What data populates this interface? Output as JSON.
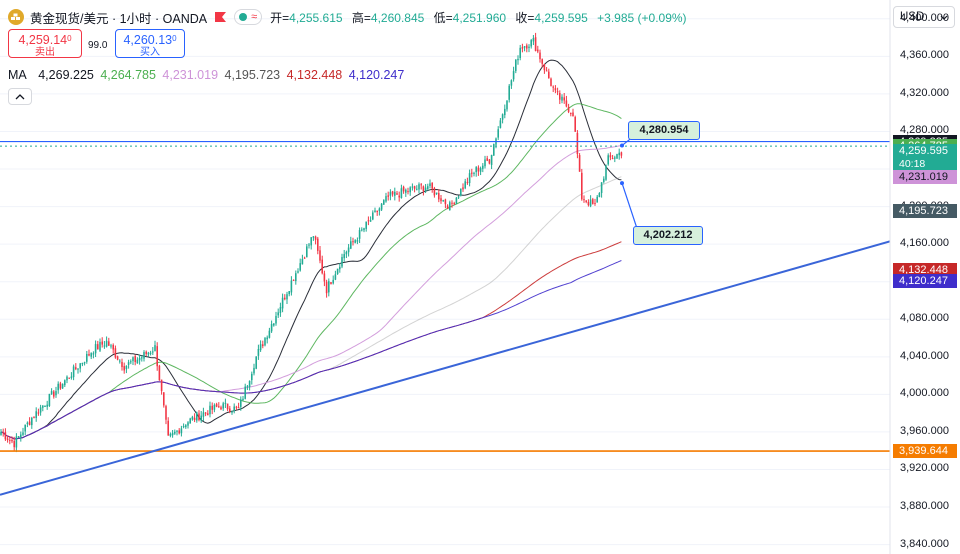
{
  "header": {
    "symbol_title": "黄金现货/美元 · 1小时 · OANDA",
    "open_label": "开=",
    "open_value": "4,255.615",
    "high_label": "高=",
    "high_value": "4,260.845",
    "low_label": "低=",
    "low_value": "4,251.960",
    "close_label": "收=",
    "close_value": "4,259.595",
    "change": "+3.985 (+0.09%)",
    "icons": [
      "gold-coin-icon",
      "flag-icon",
      "status-dot-icon",
      "wave-icon"
    ]
  },
  "trade": {
    "sell_price": "4,259.14",
    "sell_price_sup": "0",
    "sell_label": "卖出",
    "spread": "99.0",
    "buy_price": "4,260.13",
    "buy_price_sup": "0",
    "buy_label": "买入"
  },
  "ma_legend": {
    "label": "MA",
    "values": [
      "4,269.225",
      "4,264.785",
      "4,231.019",
      "4,195.723",
      "4,132.448",
      "4,120.247"
    ],
    "colors": [
      "#131722",
      "#4caf50",
      "#ce93d8",
      "#9e9e9e",
      "#c62828",
      "#3f2ecb"
    ]
  },
  "currency_select": {
    "value": "USD"
  },
  "price_axis": {
    "ticks": [
      "4,400.000",
      "4,360.000",
      "4,320.000",
      "4,280.000",
      "4,240.000",
      "4,200.000",
      "4,160.000",
      "4,120.000",
      "4,080.000",
      "4,040.000",
      "4,000.000",
      "3,960.000",
      "3,920.000",
      "3,880.000",
      "3,840.000"
    ],
    "tick_values": [
      4400,
      4360,
      4320,
      4280,
      4240,
      4200,
      4160,
      4120,
      4080,
      4040,
      4000,
      3960,
      3920,
      3880,
      3840
    ]
  },
  "price_tags": [
    {
      "text": "4,269.225",
      "value": 4269.225,
      "color": "#131722"
    },
    {
      "text": "4,264.785",
      "value": 4264.785,
      "color": "#4caf50"
    },
    {
      "text": "4,259.595",
      "sub": "40:18",
      "value": 4259.595,
      "color": "#22ab94"
    },
    {
      "text": "4,231.019",
      "value": 4231.019,
      "color": "#ce93d8",
      "dark_text": true
    },
    {
      "text": "4,195.723",
      "value": 4195.723,
      "color": "#455a64"
    },
    {
      "text": "4,132.448",
      "value": 4132.448,
      "color": "#c62828"
    },
    {
      "text": "4,120.247",
      "value": 4120.247,
      "color": "#3f2ecb"
    },
    {
      "text": "3,939.644",
      "value": 3939.644,
      "color": "#f57c00"
    }
  ],
  "callouts": [
    {
      "text": "4,280.954",
      "value": 4280.954
    },
    {
      "text": "4,202.212",
      "value": 4202.212
    }
  ],
  "colors": {
    "up": "#22ab94",
    "down": "#f23645",
    "horizontal_line": "#2962ff",
    "trendline": "#3a65d8",
    "support_line": "#f57c00"
  },
  "chart_data": {
    "type": "candlestick",
    "timeframe": "1小时",
    "ylim": [
      3830,
      4420
    ],
    "horizontal_levels": [
      4269.225,
      3939.644
    ],
    "support_level": 3939.644,
    "trendline": {
      "from": 3893,
      "to": 4163
    },
    "key_path": [
      [
        0,
        3960
      ],
      [
        6,
        3948
      ],
      [
        14,
        3975
      ],
      [
        28,
        4012
      ],
      [
        42,
        4048
      ],
      [
        48,
        4056
      ],
      [
        56,
        4030
      ],
      [
        64,
        4040
      ],
      [
        70,
        4050
      ],
      [
        76,
        3952
      ],
      [
        84,
        3970
      ],
      [
        92,
        3980
      ],
      [
        100,
        3988
      ],
      [
        108,
        3984
      ],
      [
        116,
        4040
      ],
      [
        126,
        4090
      ],
      [
        134,
        4130
      ],
      [
        142,
        4170
      ],
      [
        148,
        4112
      ],
      [
        156,
        4150
      ],
      [
        166,
        4180
      ],
      [
        176,
        4210
      ],
      [
        186,
        4218
      ],
      [
        194,
        4222
      ],
      [
        204,
        4200
      ],
      [
        214,
        4235
      ],
      [
        222,
        4250
      ],
      [
        228,
        4300
      ],
      [
        236,
        4370
      ],
      [
        242,
        4376
      ],
      [
        252,
        4320
      ],
      [
        260,
        4300
      ],
      [
        264,
        4210
      ],
      [
        270,
        4200
      ],
      [
        276,
        4250
      ],
      [
        282,
        4258
      ]
    ]
  }
}
